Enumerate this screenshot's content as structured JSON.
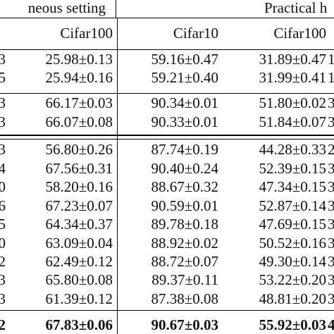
{
  "header": {
    "group_left": "neous setting",
    "group_right": "Practical h",
    "columns": [
      "Cifar100",
      "Cifar10",
      "Cifar100"
    ]
  },
  "rows": [
    {
      "c1": "3",
      "c2": "25.98±0.13",
      "c3": "59.16±0.47",
      "c4": "31.89±0.47",
      "c5": "1"
    },
    {
      "c1": "5",
      "c2": "25.94±0.16",
      "c3": "59.21±0.40",
      "c4": "31.99±0.41",
      "c5": "1"
    },
    {
      "c1": "3",
      "c2": "66.17±0.03",
      "c3": "90.34±0.01",
      "c4": "51.80±0.02",
      "c5": "3"
    },
    {
      "c1": "3",
      "c2": "66.07±0.08",
      "c3": "90.33±0.01",
      "c4": "51.84±0.07",
      "c5": "3"
    },
    {
      "c1": "3",
      "c2": "56.80±0.26",
      "c3": "87.74±0.19",
      "c4": "44.28±0.33",
      "c5": "2"
    },
    {
      "c1": "4",
      "c2": "67.56±0.31",
      "c3": "90.40±0.24",
      "c4": "52.39±0.15",
      "c5": "3"
    },
    {
      "c1": "0",
      "c2": "58.20±0.16",
      "c3": "88.67±0.32",
      "c4": "47.34±0.15",
      "c5": "3"
    },
    {
      "c1": "6",
      "c2": "67.23±0.07",
      "c3": "90.59±0.01",
      "c4": "52.87±0.14",
      "c5": "3"
    },
    {
      "c1": "5",
      "c2": "64.34±0.37",
      "c3": "89.78±0.18",
      "c4": "47.69±0.15",
      "c5": "3"
    },
    {
      "c1": "0",
      "c2": "63.09±0.04",
      "c3": "88.92±0.02",
      "c4": "50.52±0.16",
      "c5": "3"
    },
    {
      "c1": "2",
      "c2": "62.49±0.12",
      "c3": "88.72±0.07",
      "c4": "49.30±0.14",
      "c5": "3"
    },
    {
      "c1": "3",
      "c2": "65.80±0.08",
      "c3": "89.37±0.11",
      "c4": "53.22±0.20",
      "c5": "3"
    },
    {
      "c1": "3",
      "c2": "61.39±0.12",
      "c3": "87.38±0.08",
      "c4": "48.81±0.20",
      "c5": "3"
    },
    {
      "c1": "2",
      "c2": "67.83±0.06",
      "c3": "90.67±0.03",
      "c4": "55.92±0.03",
      "c5": "4"
    }
  ]
}
